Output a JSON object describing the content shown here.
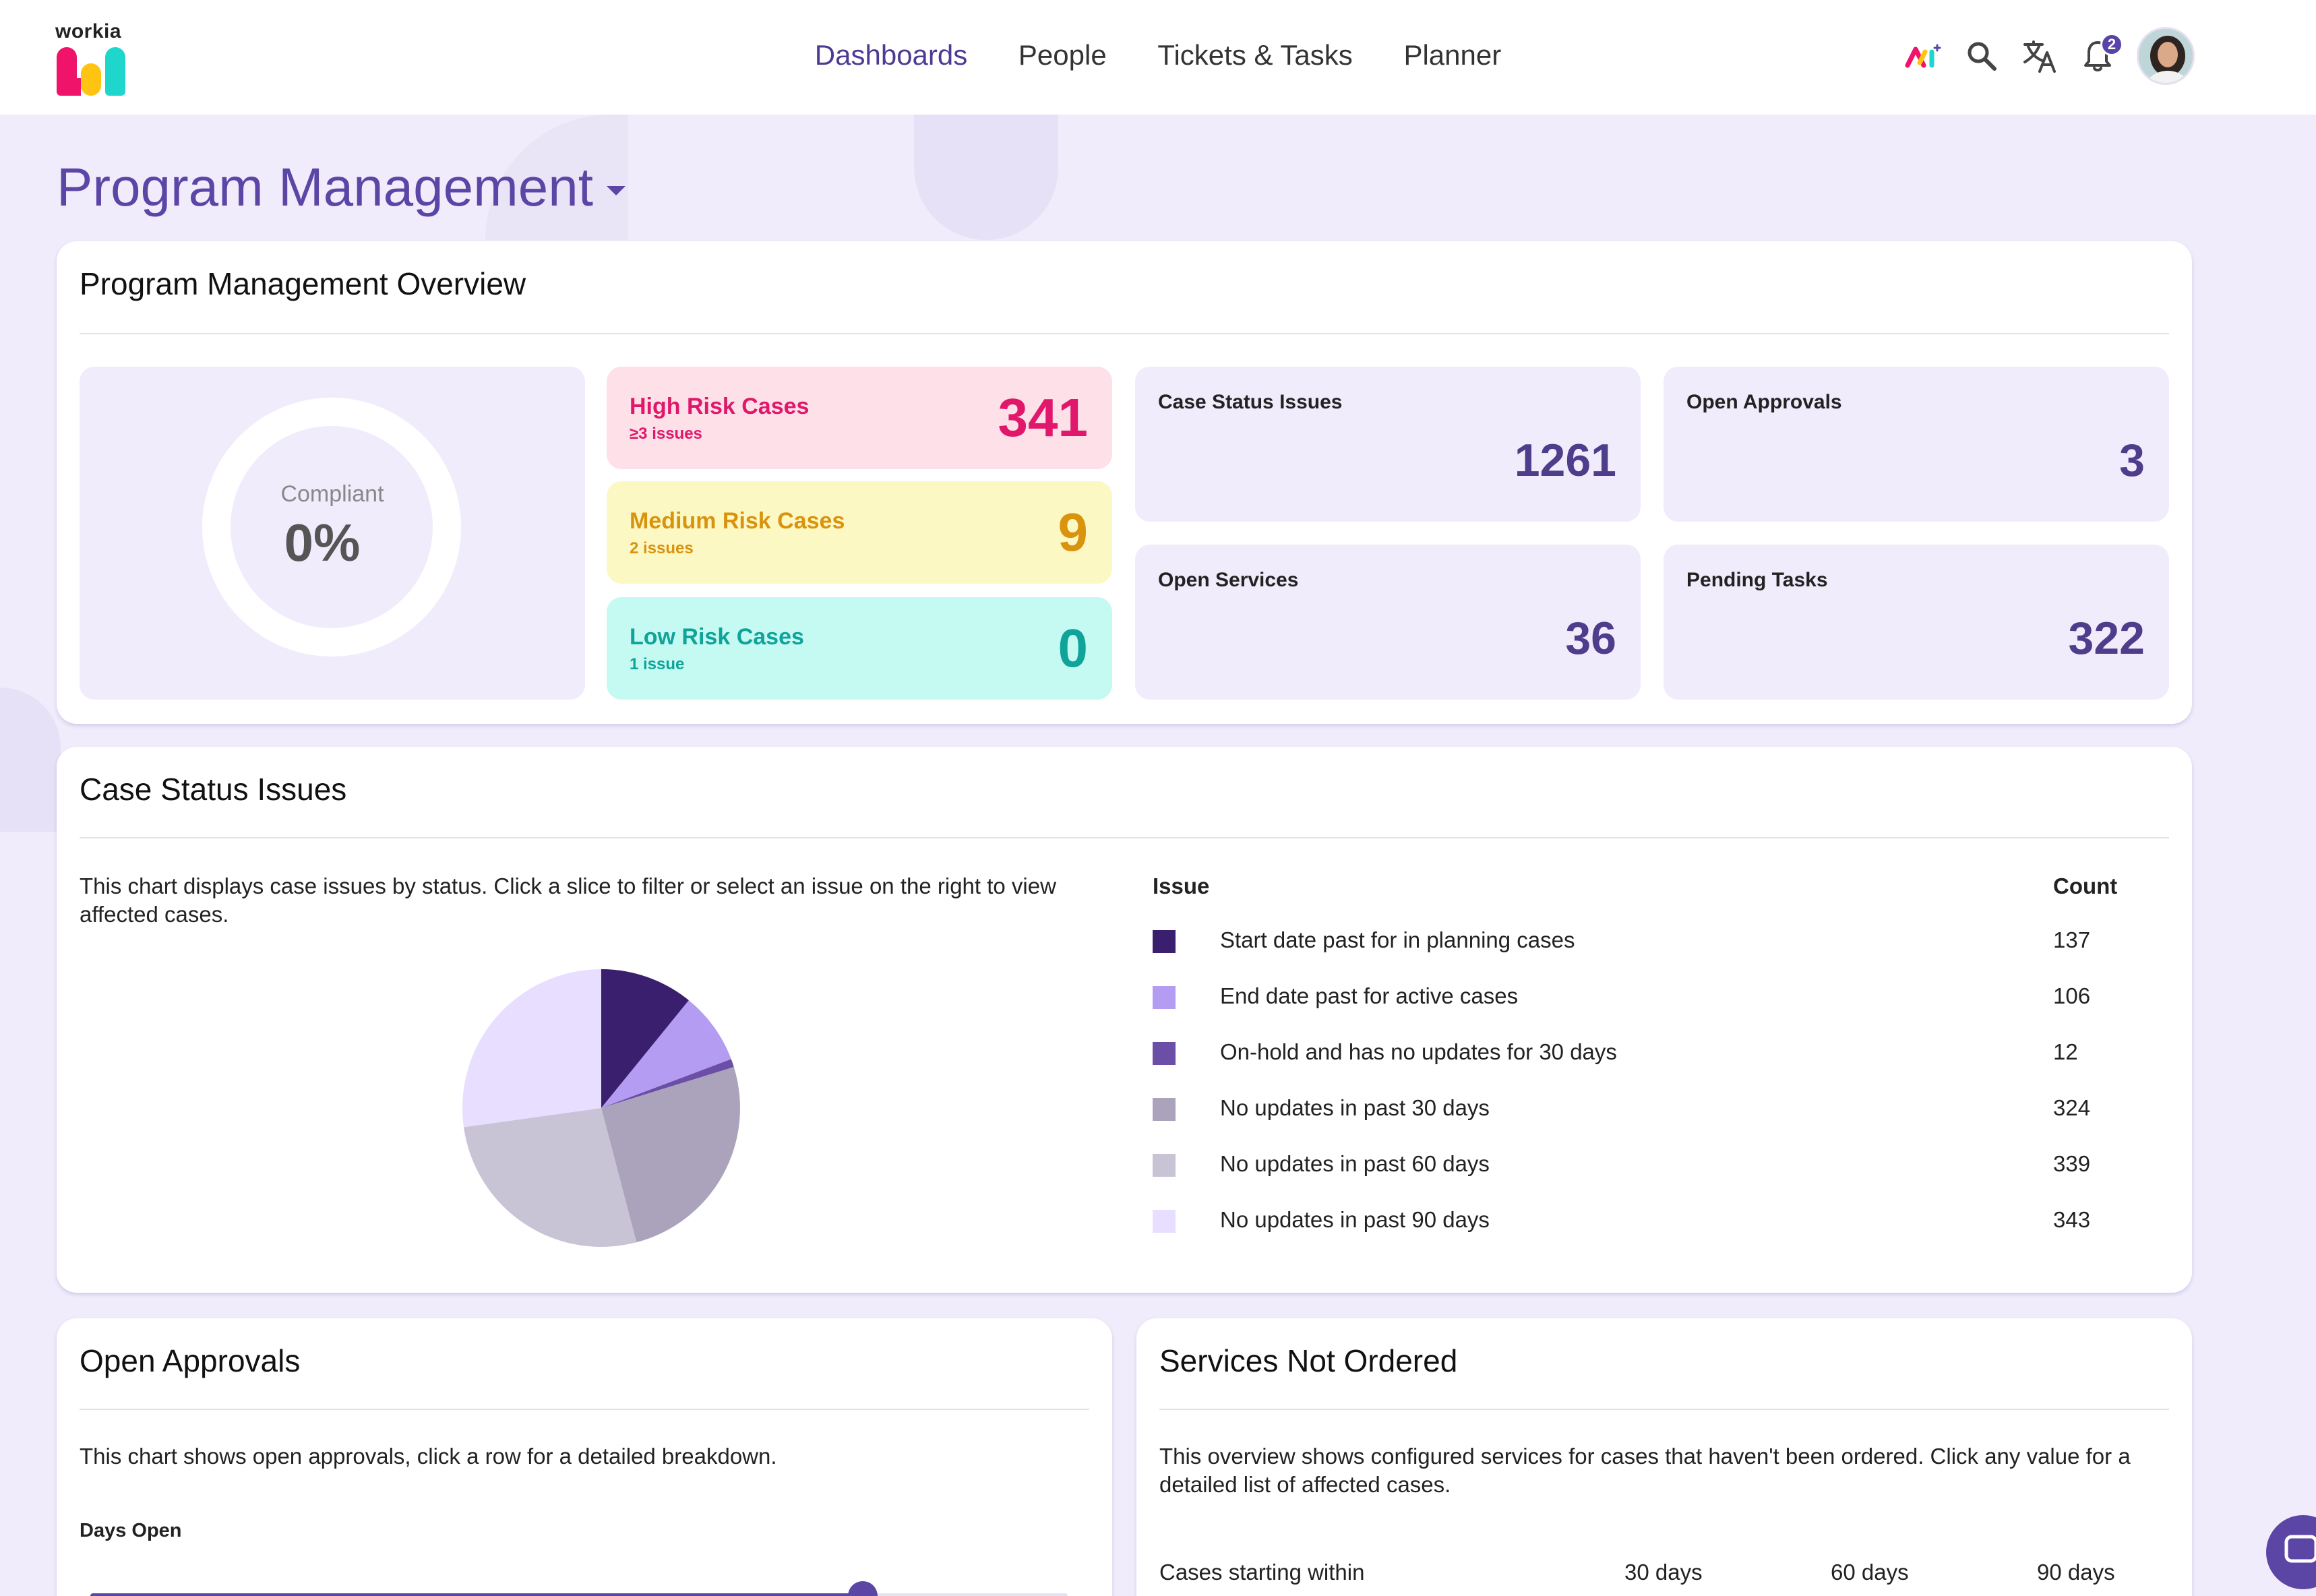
{
  "brand": {
    "name": "workia"
  },
  "nav": {
    "items": [
      {
        "label": "Dashboards",
        "active": true
      },
      {
        "label": "People",
        "active": false
      },
      {
        "label": "Tickets & Tasks",
        "active": false
      },
      {
        "label": "Planner",
        "active": false
      }
    ]
  },
  "header": {
    "notification_count": "2"
  },
  "page": {
    "title": "Program Management"
  },
  "overview": {
    "title": "Program Management Overview",
    "compliance": {
      "label": "Compliant",
      "value": "0%"
    },
    "risk": [
      {
        "label": "High Risk Cases",
        "sub": "≥3 issues",
        "value": "341",
        "bg": "#fde0e8",
        "color": "#e0176b"
      },
      {
        "label": "Medium Risk Cases",
        "sub": "2 issues",
        "value": "9",
        "bg": "#fcf8c4",
        "color": "#d9930c"
      },
      {
        "label": "Low Risk Cases",
        "sub": "1 issue",
        "value": "0",
        "bg": "#c4faf2",
        "color": "#10a39a"
      }
    ],
    "stats": [
      {
        "label": "Case Status Issues",
        "value": "1261"
      },
      {
        "label": "Open Approvals",
        "value": "3"
      },
      {
        "label": "Open Services",
        "value": "36"
      },
      {
        "label": "Pending Tasks",
        "value": "322"
      }
    ]
  },
  "case_status": {
    "title": "Case Status Issues",
    "description": "This chart displays case issues by status. Click a slice to filter or select an issue on the right to view affected cases.",
    "col_issue": "Issue",
    "col_count": "Count"
  },
  "chart_data": {
    "type": "pie",
    "categories": [
      "Start date past for in planning cases",
      "End date past for active cases",
      "On-hold and has no updates for 30 days",
      "No updates in past 30 days",
      "No updates in past 60 days",
      "No updates in past 90 days"
    ],
    "values": [
      137,
      106,
      12,
      324,
      339,
      343
    ],
    "colors": [
      "#3a1f6e",
      "#b39cf2",
      "#6b4ea6",
      "#aba3bb",
      "#c9c3d6",
      "#e8deff"
    ]
  },
  "approvals": {
    "title": "Open Approvals",
    "description": "This chart shows open approvals, click a row for a detailed breakdown.",
    "days_open_label": "Days Open",
    "slider_fraction": 0.79
  },
  "services": {
    "title": "Services Not Ordered",
    "description": "This overview shows configured services for cases that haven't been ordered. Click any value for a detailed list of affected cases.",
    "row_label": "Cases starting within",
    "columns": [
      "30 days",
      "60 days",
      "90 days"
    ]
  }
}
